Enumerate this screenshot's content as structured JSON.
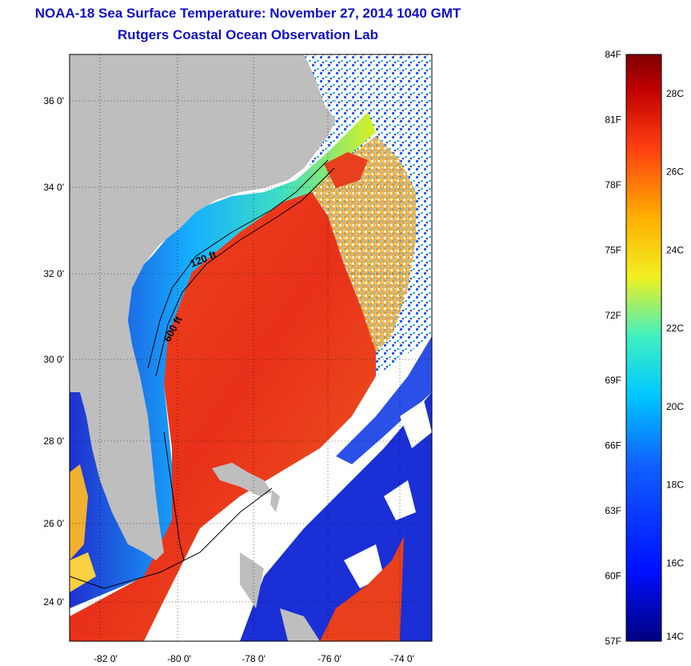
{
  "header": {
    "title_line1": "NOAA-18 Sea Surface Temperature:  November 27, 2014 1040 GMT",
    "title_line2": "Rutgers Coastal Ocean Observation Lab"
  },
  "map": {
    "lat_ticks": [
      "36 0'",
      "34 0'",
      "32 0'",
      "30 0'",
      "28 0'",
      "26 0'",
      "24 0'"
    ],
    "lon_ticks": [
      "-82 0'",
      "-80 0'",
      "-78 0'",
      "-76 0'",
      "-74 0'"
    ],
    "contour_labels": [
      "120 ft",
      "600 ft"
    ],
    "colors": {
      "land": "#bebebe",
      "cloud": "#ffffff",
      "cold": "#1a2fd6",
      "warm": "#ee3a1a",
      "gulf_stream": "#e52c12"
    }
  },
  "colorbar": {
    "fahrenheit_labels": [
      "84F",
      "81F",
      "78F",
      "75F",
      "72F",
      "69F",
      "66F",
      "63F",
      "60F",
      "57F"
    ],
    "celsius_labels": [
      "28C",
      "26C",
      "24C",
      "22C",
      "20C",
      "18C",
      "16C",
      "14C"
    ],
    "range_f": [
      57,
      84
    ],
    "range_c": [
      14,
      29
    ]
  }
}
